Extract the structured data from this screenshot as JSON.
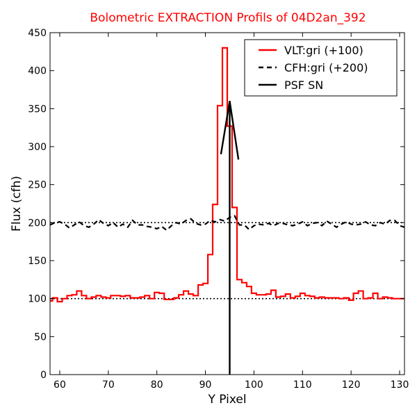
{
  "chart_data": {
    "type": "line",
    "title": "Bolometric EXTRACTION Profils of 04D2an_392",
    "title_color": "#ff0000",
    "xlabel": "Y Pixel",
    "ylabel": "Flux (cfh)",
    "xlim": [
      58,
      131
    ],
    "ylim": [
      0,
      450
    ],
    "xticks": [
      60,
      70,
      80,
      90,
      100,
      110,
      120,
      130
    ],
    "yticks": [
      0,
      50,
      100,
      150,
      200,
      250,
      300,
      350,
      400,
      450
    ],
    "legend_position": "top-right",
    "reference_lines": [
      {
        "y": 100,
        "style": "dotted",
        "color": "#000000"
      },
      {
        "y": 200,
        "style": "dotted",
        "color": "#000000"
      }
    ],
    "series": [
      {
        "name": "VLT:gri (+100)",
        "color": "#ff0000",
        "style": "steps",
        "x": [
          58,
          59,
          60,
          61,
          62,
          63,
          64,
          65,
          66,
          67,
          68,
          69,
          70,
          71,
          72,
          73,
          74,
          75,
          76,
          77,
          78,
          79,
          80,
          81,
          82,
          83,
          84,
          85,
          86,
          87,
          88,
          89,
          90,
          91,
          92,
          93,
          94,
          95,
          96,
          97,
          98,
          99,
          100,
          101,
          102,
          103,
          104,
          105,
          106,
          107,
          108,
          109,
          110,
          111,
          112,
          113,
          114,
          115,
          116,
          117,
          118,
          119,
          120,
          121,
          122,
          123,
          124,
          125,
          126,
          127,
          128,
          129,
          130,
          131
        ],
        "values": [
          97,
          101,
          96,
          100,
          104,
          105,
          110,
          104,
          100,
          102,
          104,
          102,
          101,
          104,
          104,
          103,
          104,
          101,
          101,
          102,
          104,
          100,
          108,
          107,
          99,
          99,
          101,
          105,
          110,
          106,
          104,
          118,
          120,
          158,
          224,
          354,
          430,
          327,
          220,
          125,
          121,
          116,
          107,
          105,
          105,
          106,
          111,
          102,
          103,
          106,
          101,
          103,
          107,
          104,
          103,
          101,
          102,
          101,
          101,
          101,
          100,
          101,
          98,
          107,
          110,
          100,
          101,
          107,
          100,
          102,
          101,
          100,
          100,
          100
        ],
        "y_offset": 100
      },
      {
        "name": "CFH:gri (+200)",
        "color": "#000000",
        "style": "dashed",
        "x": [
          58,
          59,
          60,
          61,
          62,
          63,
          64,
          65,
          66,
          67,
          68,
          69,
          70,
          71,
          72,
          73,
          74,
          75,
          76,
          77,
          78,
          79,
          80,
          81,
          82,
          83,
          84,
          85,
          86,
          87,
          88,
          89,
          90,
          91,
          92,
          93,
          94,
          95,
          96,
          97,
          98,
          99,
          100,
          101,
          102,
          103,
          104,
          105,
          106,
          107,
          108,
          109,
          110,
          111,
          112,
          113,
          114,
          115,
          116,
          117,
          118,
          119,
          120,
          121,
          122,
          123,
          124,
          125,
          126,
          127,
          128,
          129,
          130,
          131
        ],
        "values": [
          197,
          200,
          201,
          198,
          193,
          197,
          201,
          196,
          194,
          198,
          204,
          199,
          196,
          200,
          194,
          198,
          194,
          203,
          197,
          197,
          195,
          194,
          192,
          195,
          190,
          196,
          200,
          198,
          203,
          205,
          199,
          197,
          198,
          203,
          201,
          204,
          202,
          207,
          209,
          197,
          197,
          191,
          196,
          198,
          197,
          199,
          196,
          199,
          199,
          197,
          196,
          198,
          201,
          196,
          199,
          200,
          196,
          202,
          198,
          194,
          198,
          201,
          198,
          197,
          198,
          201,
          197,
          196,
          200,
          198,
          203,
          203,
          196,
          194
        ],
        "y_offset": 200
      },
      {
        "name": "PSF SN",
        "color": "#000000",
        "style": "solid",
        "x": [
          93.2,
          95.0,
          96.8
        ],
        "values": [
          290,
          360,
          283
        ]
      }
    ],
    "vertical_marker": {
      "x": 95.0,
      "color": "#000000"
    }
  }
}
